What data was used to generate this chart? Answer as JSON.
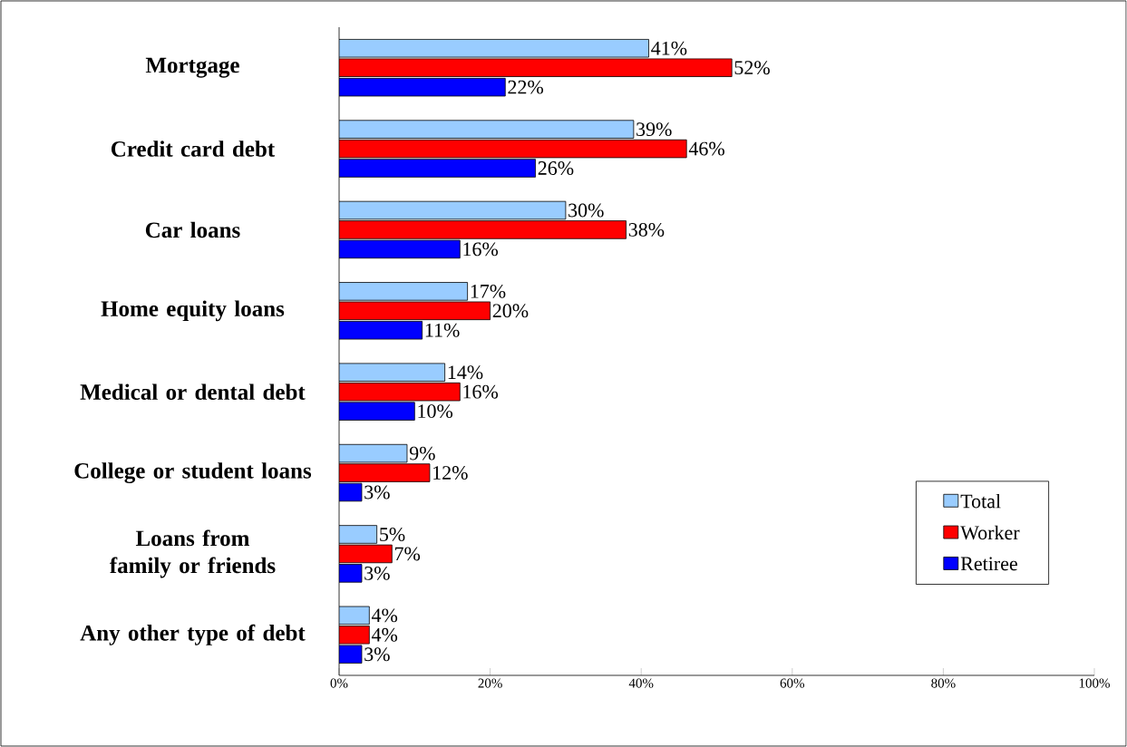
{
  "chart_data": {
    "type": "bar",
    "orientation": "horizontal",
    "categories": [
      "Mortgage",
      "Credit card debt",
      "Car loans",
      "Home equity loans",
      "Medical or dental debt",
      "College or student loans",
      "Loans from family or friends",
      "Any other type of debt"
    ],
    "series": [
      {
        "name": "Total",
        "color": "#99ccff",
        "values": [
          41,
          39,
          30,
          17,
          14,
          9,
          5,
          4
        ],
        "value_labels": [
          "41%",
          "39%",
          "30%",
          "17%",
          "14%",
          "9%",
          "5%",
          "4%"
        ]
      },
      {
        "name": "Worker",
        "color": "#ff0000",
        "values": [
          52,
          46,
          38,
          20,
          16,
          12,
          7,
          4
        ],
        "value_labels": [
          "52%",
          "46%",
          "38%",
          "20%",
          "16%",
          "12%",
          "7%",
          "4%"
        ]
      },
      {
        "name": "Retiree",
        "color": "#0000ff",
        "values": [
          22,
          26,
          16,
          11,
          10,
          3,
          3,
          3
        ],
        "value_labels": [
          "22%",
          "26%",
          "16%",
          "11%",
          "10%",
          "3%",
          "3%",
          "3%"
        ]
      }
    ],
    "xlim": [
      0,
      100
    ],
    "xticks": [
      {
        "value": 0,
        "label": "0%"
      },
      {
        "value": 20,
        "label": "20%"
      },
      {
        "value": 40,
        "label": "40%"
      },
      {
        "value": 60,
        "label": "60%"
      },
      {
        "value": 80,
        "label": "80%"
      },
      {
        "value": 100,
        "label": "100%"
      }
    ],
    "legend": "right",
    "grid": false
  }
}
